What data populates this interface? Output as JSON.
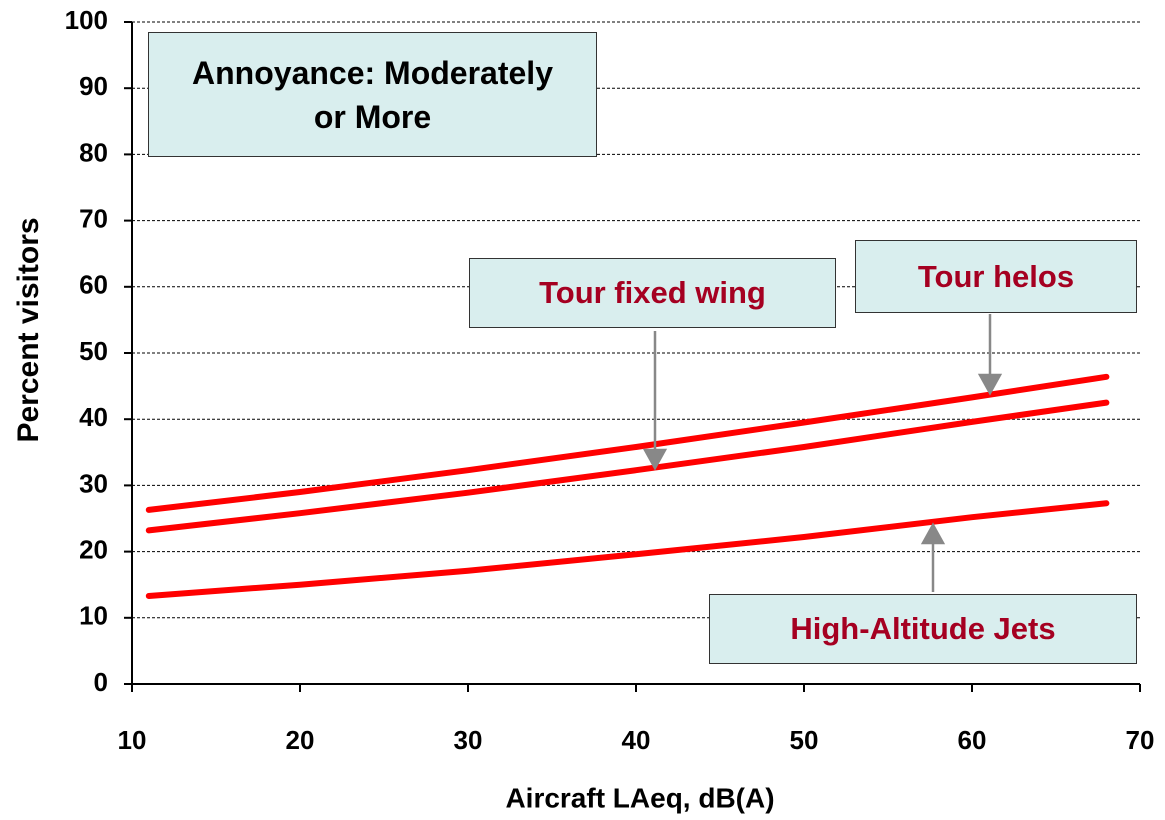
{
  "chart_data": {
    "type": "line",
    "title": "Annoyance: Moderately or More",
    "x_label": "Aircraft LAeq, dB(A)",
    "y_label": "Percent visitors",
    "x": [
      11,
      20,
      30,
      40,
      50,
      60,
      68
    ],
    "series": [
      {
        "name": "Tour helos",
        "color": "#ff0000",
        "values": [
          26.3,
          29,
          32.3,
          35.8,
          39.5,
          43.3,
          46.4
        ]
      },
      {
        "name": "Tour fixed wing",
        "color": "#ff0000",
        "values": [
          23.2,
          25.8,
          28.9,
          32.3,
          35.8,
          39.6,
          42.5
        ]
      },
      {
        "name": "High-Altitude Jets",
        "color": "#ff0000",
        "values": [
          13.3,
          15,
          17.1,
          19.6,
          22.2,
          25.2,
          27.3
        ]
      }
    ],
    "xlim": [
      10,
      70
    ],
    "xticks": [
      10,
      20,
      30,
      40,
      50,
      60,
      70
    ],
    "ylim": [
      0,
      100
    ],
    "yticks": [
      0,
      10,
      20,
      30,
      40,
      50,
      60,
      70,
      80,
      90,
      100
    ],
    "grid": true
  }
}
